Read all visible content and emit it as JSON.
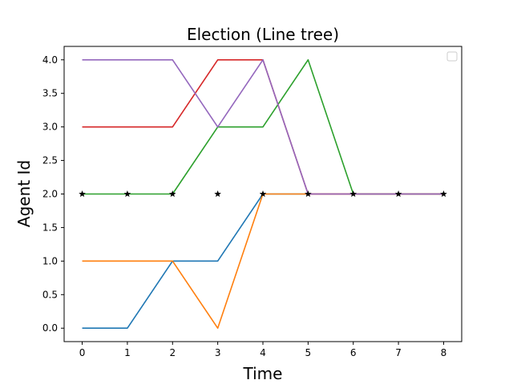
{
  "chart_data": {
    "type": "line",
    "title": "Election (Line tree)",
    "xlabel": "Time",
    "ylabel": "Agent Id",
    "xlim": [
      -0.4,
      8.4
    ],
    "ylim": [
      -0.2,
      4.2
    ],
    "xticks": [
      "0",
      "1",
      "2",
      "3",
      "4",
      "5",
      "6",
      "7",
      "8"
    ],
    "yticks": [
      "0.0",
      "0.5",
      "1.0",
      "1.5",
      "2.0",
      "2.5",
      "3.0",
      "3.5",
      "4.0"
    ],
    "grid": false,
    "legend": {
      "placement": "upper right",
      "entries": []
    },
    "x": [
      0,
      1,
      2,
      3,
      4,
      5,
      6,
      7,
      8
    ],
    "series": [
      {
        "color": "#1f77b4",
        "values": [
          0,
          0,
          1,
          1,
          2,
          2,
          2,
          2,
          2
        ]
      },
      {
        "color": "#ff7f0e",
        "values": [
          1,
          1,
          1,
          0,
          2,
          2,
          2,
          2,
          2
        ]
      },
      {
        "color": "#2ca02c",
        "values": [
          2,
          2,
          2,
          3,
          3,
          4,
          2,
          2,
          2
        ]
      },
      {
        "color": "#d62728",
        "values": [
          3,
          3,
          3,
          4,
          4,
          2,
          2,
          2,
          2
        ]
      },
      {
        "color": "#9467bd",
        "values": [
          4,
          4,
          4,
          3,
          4,
          2,
          2,
          2,
          2
        ]
      }
    ],
    "markers": {
      "shape": "star",
      "color": "#000000",
      "x": [
        0,
        1,
        2,
        3,
        4,
        5,
        6,
        7,
        8
      ],
      "y": [
        2,
        2,
        2,
        2,
        2,
        2,
        2,
        2,
        2
      ]
    }
  }
}
